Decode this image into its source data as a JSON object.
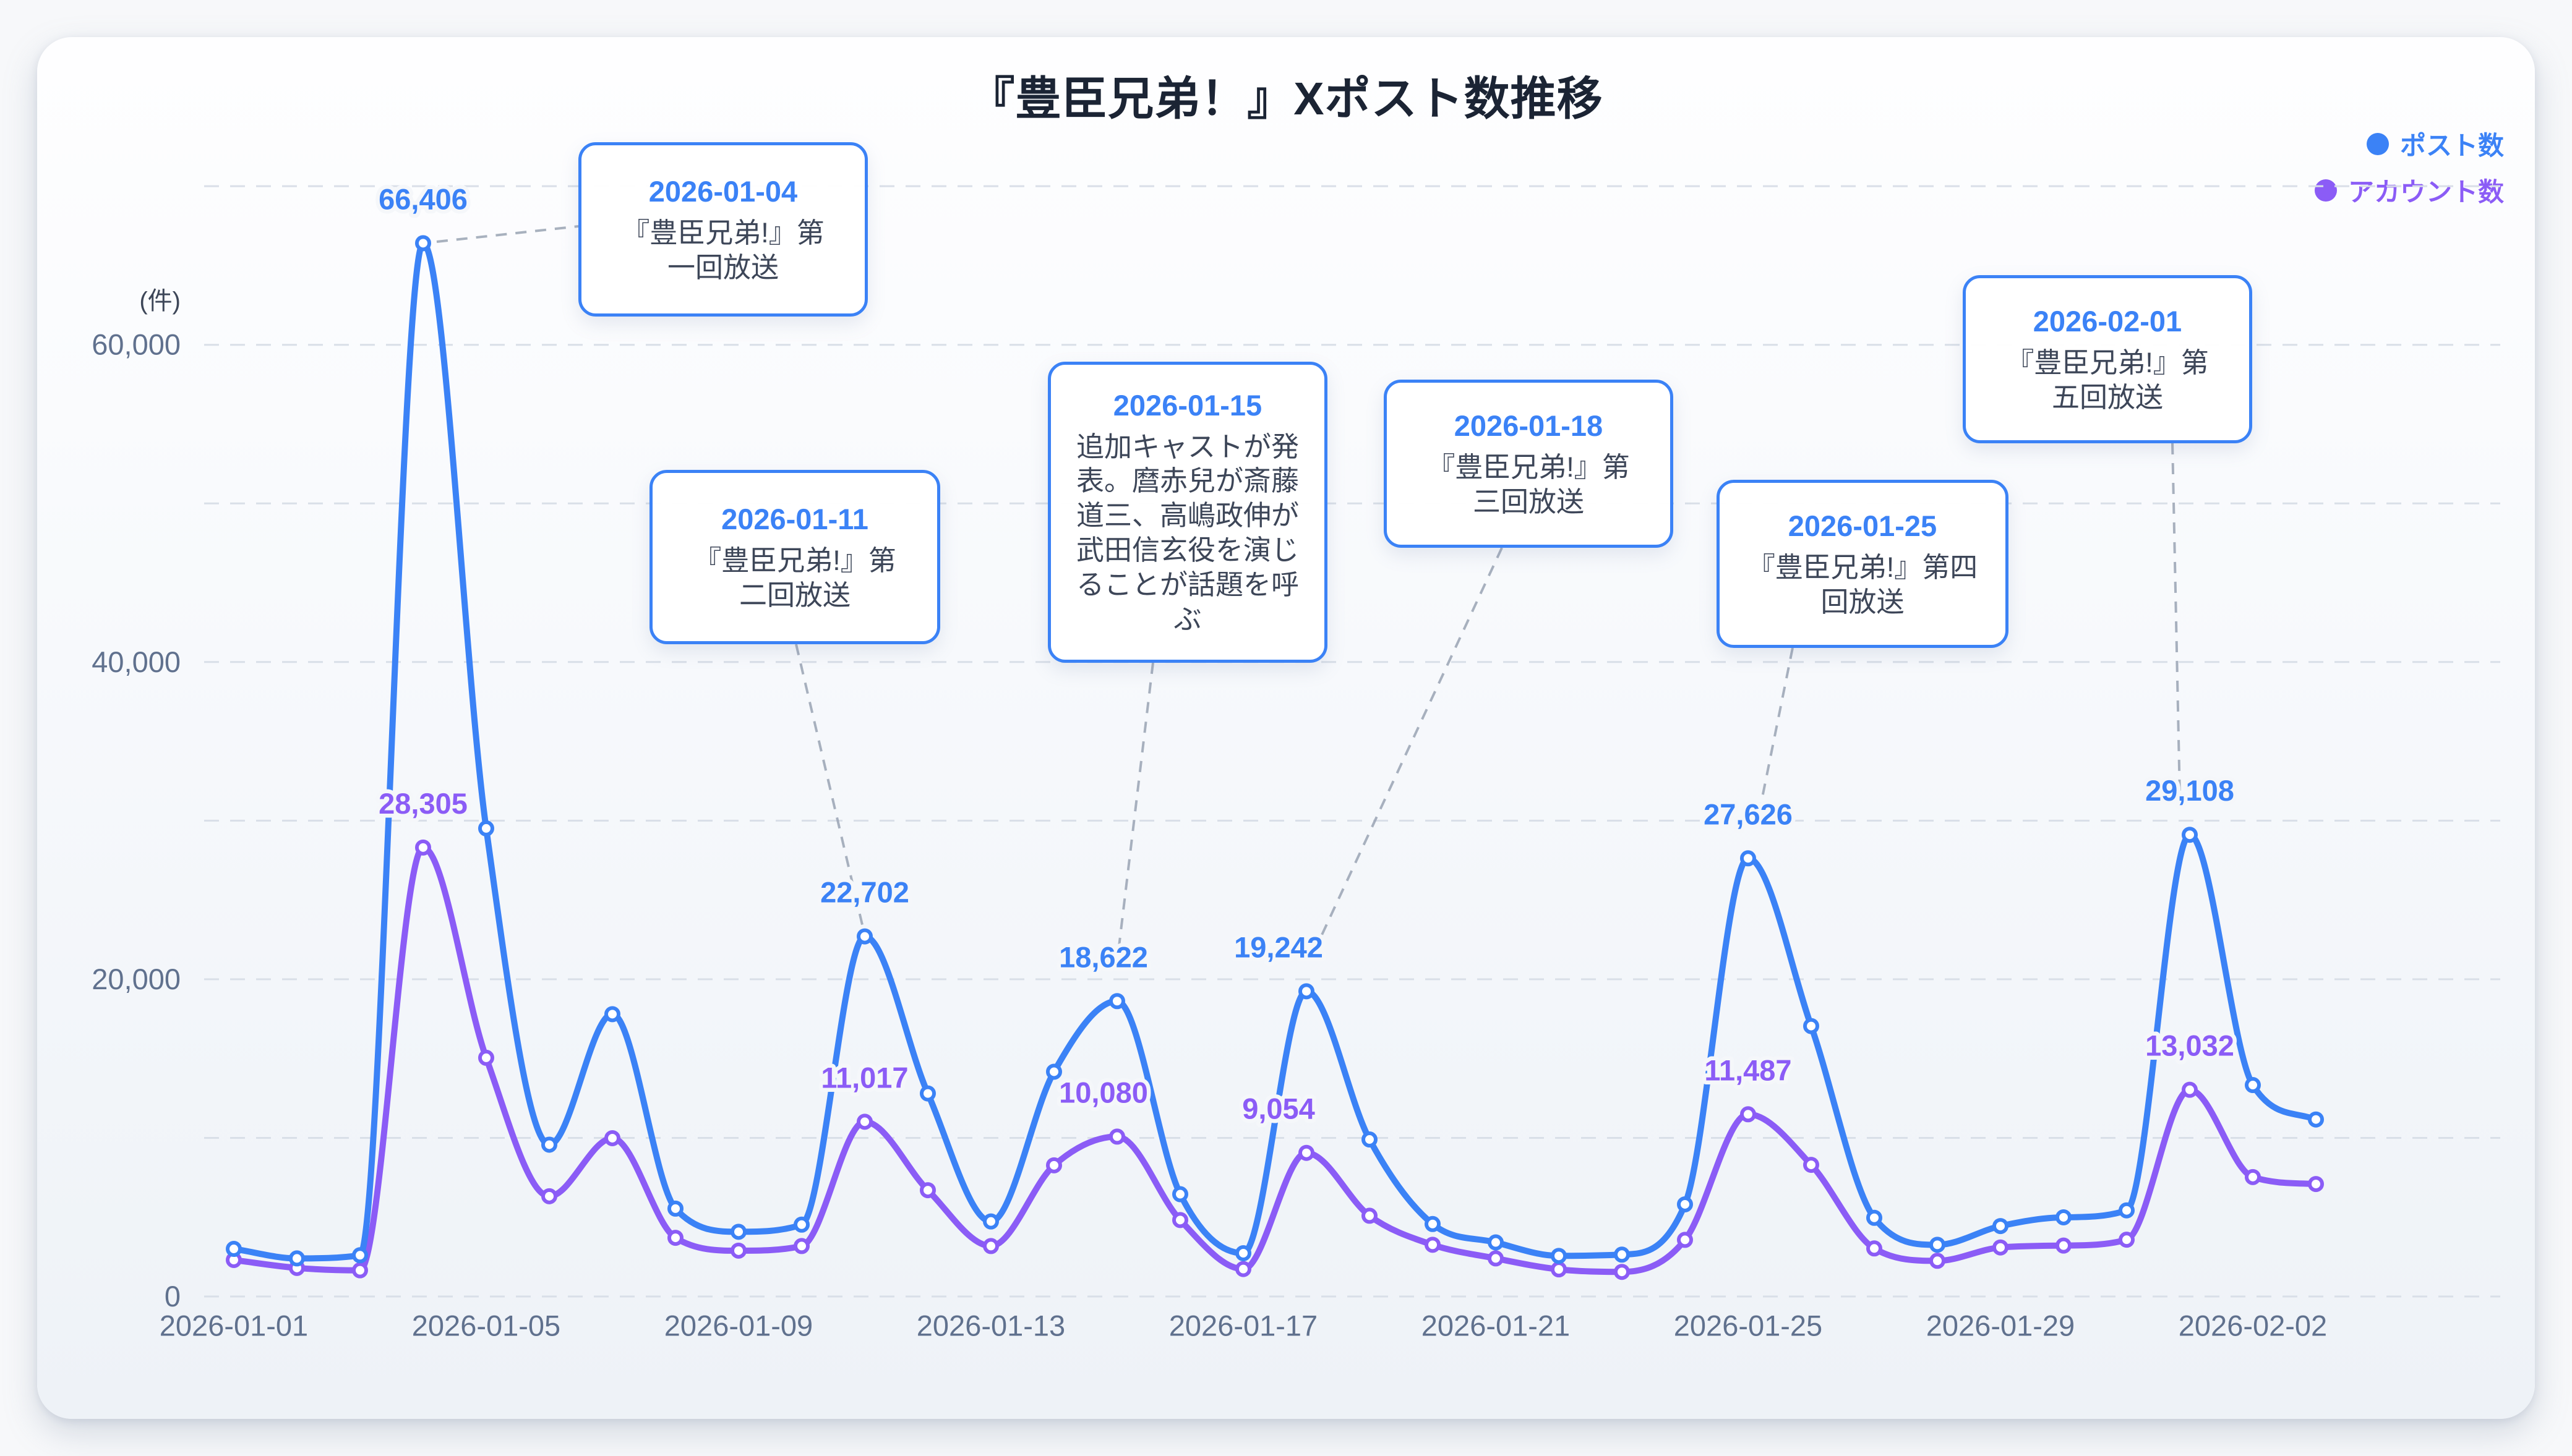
{
  "title": "『豊臣兄弟！』Xポスト数推移",
  "y_axis": {
    "unit": "(件)",
    "tick_labels": [
      "0",
      "20,000",
      "40,000",
      "60,000"
    ]
  },
  "legend": {
    "position": "top-right",
    "items": [
      {
        "label": "ポスト数",
        "color": "#3b82f6"
      },
      {
        "label": "アカウント数",
        "color": "#8b5cf6"
      }
    ]
  },
  "chart_data": {
    "type": "line",
    "x": [
      "2026-01-01",
      "2026-01-02",
      "2026-01-03",
      "2026-01-04",
      "2026-01-05",
      "2026-01-06",
      "2026-01-07",
      "2026-01-08",
      "2026-01-09",
      "2026-01-10",
      "2026-01-11",
      "2026-01-12",
      "2026-01-13",
      "2026-01-14",
      "2026-01-15",
      "2026-01-16",
      "2026-01-17",
      "2026-01-18",
      "2026-01-19",
      "2026-01-20",
      "2026-01-21",
      "2026-01-22",
      "2026-01-23",
      "2026-01-24",
      "2026-01-25",
      "2026-01-26",
      "2026-01-27",
      "2026-01-28",
      "2026-01-29",
      "2026-01-30",
      "2026-01-31",
      "2026-02-01",
      "2026-02-02",
      "2026-02-03"
    ],
    "series": [
      {
        "name": "ポスト数",
        "color": "#3b82f6",
        "values": [
          3000,
          2400,
          2600,
          66406,
          29510,
          9570,
          17800,
          5540,
          4080,
          4530,
          22702,
          12800,
          4730,
          14170,
          18622,
          6450,
          2730,
          19242,
          9900,
          4570,
          3410,
          2560,
          2640,
          5810,
          27626,
          17050,
          4960,
          3260,
          4440,
          4990,
          5430,
          29108,
          13330,
          11160
        ]
      },
      {
        "name": "アカウント数",
        "color": "#8b5cf6",
        "values": [
          2300,
          1800,
          1650,
          28305,
          15050,
          6320,
          9980,
          3700,
          2890,
          3180,
          11017,
          6700,
          3180,
          8270,
          10080,
          4820,
          1730,
          9054,
          5090,
          3260,
          2400,
          1710,
          1550,
          3570,
          11487,
          8300,
          3030,
          2250,
          3090,
          3210,
          3580,
          13032,
          7530,
          7090
        ]
      }
    ],
    "ylim": [
      0,
      70000
    ],
    "ytick_values": [
      0,
      20000,
      40000,
      60000
    ],
    "grid_interval": 10000,
    "grid_style": "dashed-horizontal",
    "xtick_labels": [
      "2026-01-01",
      "2026-01-05",
      "2026-01-09",
      "2026-01-13",
      "2026-01-17",
      "2026-01-21",
      "2026-01-25",
      "2026-01-29",
      "2026-02-02"
    ],
    "value_labels": [
      {
        "date": "2026-01-04",
        "posts": "66,406",
        "accounts": "28,305"
      },
      {
        "date": "2026-01-11",
        "posts": "22,702",
        "accounts": "11,017"
      },
      {
        "date": "2026-01-15",
        "posts": "18,622",
        "accounts": "10,080"
      },
      {
        "date": "2026-01-18",
        "posts": "19,242",
        "accounts": "9,054"
      },
      {
        "date": "2026-01-25",
        "posts": "27,626",
        "accounts": "11,487"
      },
      {
        "date": "2026-02-01",
        "posts": "29,108",
        "accounts": "13,032"
      }
    ]
  },
  "annotations": [
    {
      "date": "2026-01-04",
      "text": "『豊臣兄弟!』第一回放送"
    },
    {
      "date": "2026-01-11",
      "text": "『豊臣兄弟!』第二回放送"
    },
    {
      "date": "2026-01-15",
      "text": "追加キャストが発表。麿赤兒が斎藤道三、高嶋政伸が武田信玄役を演じることが話題を呼ぶ"
    },
    {
      "date": "2026-01-18",
      "text": "『豊臣兄弟!』第三回放送"
    },
    {
      "date": "2026-01-25",
      "text": "『豊臣兄弟!』第四回放送"
    },
    {
      "date": "2026-02-01",
      "text": "『豊臣兄弟!』第五回放送"
    }
  ]
}
